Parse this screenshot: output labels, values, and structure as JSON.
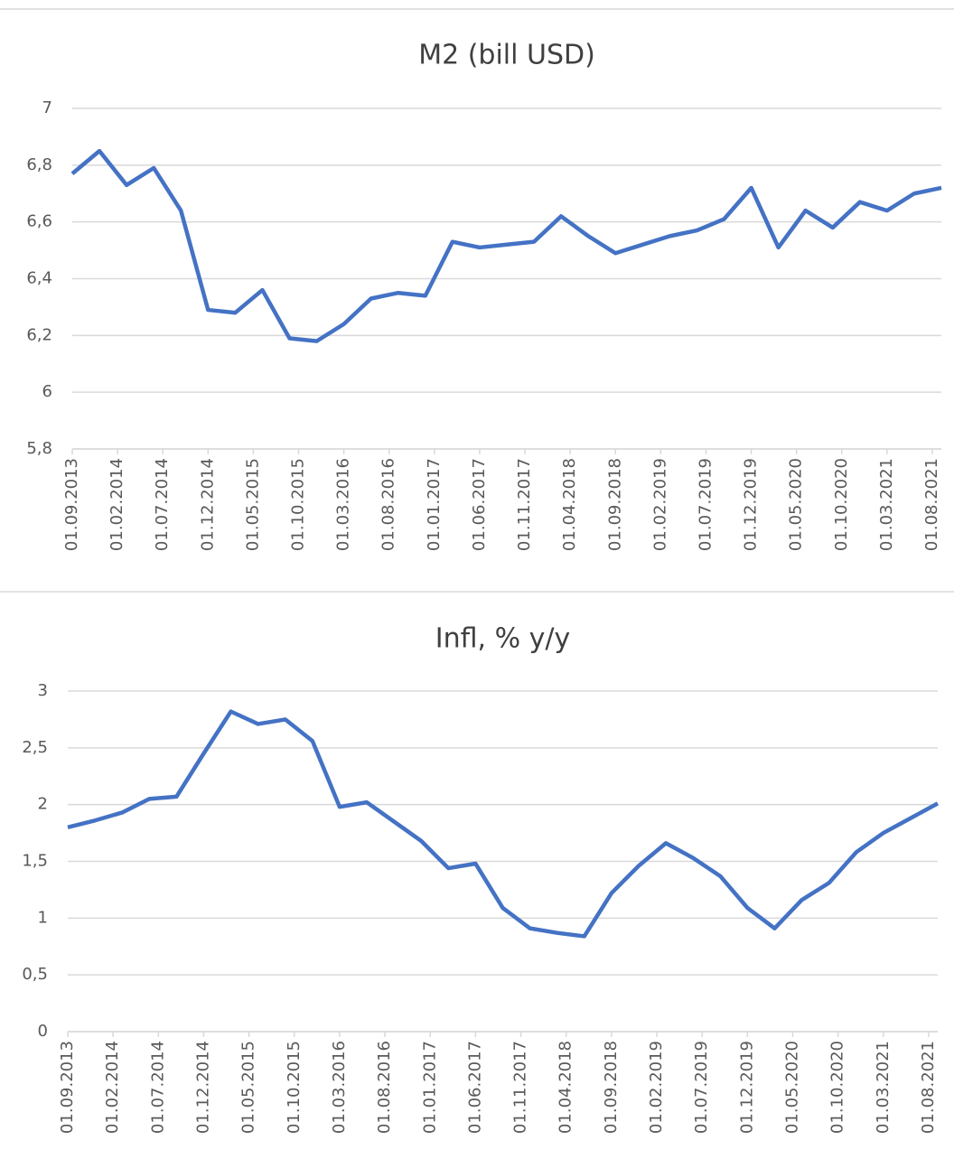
{
  "chart_data": [
    {
      "type": "line",
      "title": "M2 (bill USD)",
      "x": [
        "01.09.2013",
        "01.12.2013",
        "01.03.2014",
        "01.06.2014",
        "01.09.2014",
        "01.12.2014",
        "01.03.2015",
        "01.06.2015",
        "01.09.2015",
        "01.12.2015",
        "01.03.2016",
        "01.06.2016",
        "01.09.2016",
        "01.12.2016",
        "01.03.2017",
        "01.06.2017",
        "01.09.2017",
        "01.12.2017",
        "01.03.2018",
        "01.06.2018",
        "01.09.2018",
        "01.12.2018",
        "01.03.2019",
        "01.06.2019",
        "01.09.2019",
        "01.12.2019",
        "01.03.2020",
        "01.06.2020",
        "01.09.2020",
        "01.12.2020",
        "01.03.2021",
        "01.06.2021",
        "01.09.2021"
      ],
      "series": [
        {
          "color": "#4472c4",
          "values": [
            6.77,
            6.85,
            6.73,
            6.79,
            6.64,
            6.29,
            6.28,
            6.36,
            6.19,
            6.18,
            6.24,
            6.33,
            6.35,
            6.34,
            6.53,
            6.51,
            6.52,
            6.53,
            6.62,
            6.55,
            6.49,
            6.52,
            6.55,
            6.57,
            6.61,
            6.72,
            6.51,
            6.64,
            6.58,
            6.67,
            6.64,
            6.7,
            6.72
          ]
        }
      ],
      "xlim": [
        "01.09.2013",
        "01.09.2021"
      ],
      "xticks": [
        "01.09.2013",
        "01.02.2014",
        "01.07.2014",
        "01.12.2014",
        "01.05.2015",
        "01.10.2015",
        "01.03.2016",
        "01.08.2016",
        "01.01.2017",
        "01.06.2017",
        "01.11.2017",
        "01.04.2018",
        "01.09.2018",
        "01.02.2019",
        "01.07.2019",
        "01.12.2019",
        "01.05.2020",
        "01.10.2020",
        "01.03.2021",
        "01.08.2021"
      ],
      "ylim": [
        5.8,
        7
      ],
      "yticks": [
        {
          "value": 5.8,
          "label": "5,8"
        },
        6,
        {
          "value": 6.2,
          "label": "6,2"
        },
        {
          "value": 6.4,
          "label": "6,4"
        },
        {
          "value": 6.6,
          "label": "6,6"
        },
        {
          "value": 6.8,
          "label": "6,8"
        },
        7
      ],
      "grid": true
    },
    {
      "type": "line",
      "title": "Infl, % y/y",
      "x": [
        "01.09.2013",
        "01.12.2013",
        "01.03.2014",
        "01.06.2014",
        "01.09.2014",
        "01.12.2014",
        "01.03.2015",
        "01.06.2015",
        "01.09.2015",
        "01.12.2015",
        "01.03.2016",
        "01.06.2016",
        "01.09.2016",
        "01.12.2016",
        "01.03.2017",
        "01.06.2017",
        "01.09.2017",
        "01.12.2017",
        "01.03.2018",
        "01.06.2018",
        "01.09.2018",
        "01.12.2018",
        "01.03.2019",
        "01.06.2019",
        "01.09.2019",
        "01.12.2019",
        "01.03.2020",
        "01.06.2020",
        "01.09.2020",
        "01.12.2020",
        "01.03.2021",
        "01.06.2021",
        "01.09.2021"
      ],
      "series": [
        {
          "color": "#4472c4",
          "values": [
            1.8,
            1.86,
            1.93,
            2.05,
            2.07,
            2.45,
            2.82,
            2.71,
            2.75,
            2.56,
            1.98,
            2.02,
            1.85,
            1.68,
            1.44,
            1.48,
            1.09,
            0.91,
            0.87,
            0.84,
            1.22,
            1.46,
            1.66,
            1.53,
            1.37,
            1.09,
            0.91,
            1.16,
            1.31,
            1.58,
            1.75,
            1.88,
            2.01
          ]
        }
      ],
      "xlim": [
        "01.09.2013",
        "01.09.2021"
      ],
      "xticks": [
        "01.09.2013",
        "01.02.2014",
        "01.07.2014",
        "01.12.2014",
        "01.05.2015",
        "01.10.2015",
        "01.03.2016",
        "01.08.2016",
        "01.01.2017",
        "01.06.2017",
        "01.11.2017",
        "01.04.2018",
        "01.09.2018",
        "01.02.2019",
        "01.07.2019",
        "01.12.2019",
        "01.05.2020",
        "01.10.2020",
        "01.03.2021",
        "01.08.2021"
      ],
      "ylim": [
        0,
        3
      ],
      "yticks": [
        0,
        {
          "value": 0.5,
          "label": "0,5"
        },
        1,
        {
          "value": 1.5,
          "label": "1,5"
        },
        2,
        {
          "value": 2.5,
          "label": "2,5"
        },
        3
      ],
      "grid": true
    }
  ]
}
